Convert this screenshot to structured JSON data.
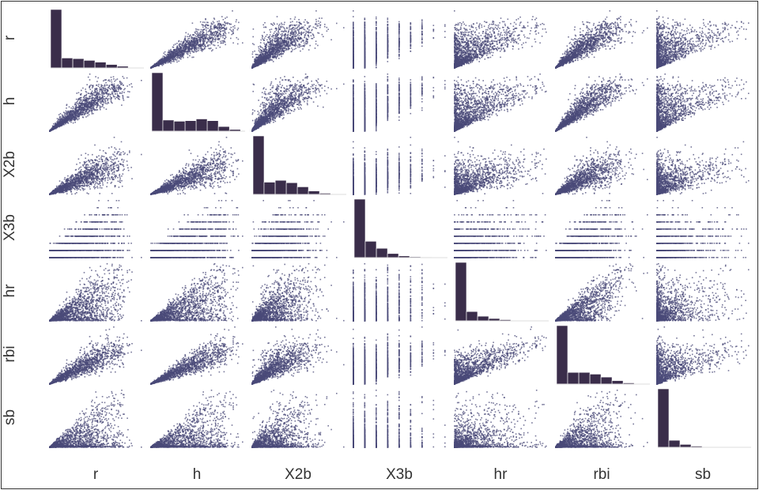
{
  "chart_data": {
    "type": "scatter_matrix",
    "variables": [
      "r",
      "h",
      "X2b",
      "X3b",
      "hr",
      "rbi",
      "sb"
    ],
    "colors": {
      "points": "#4a4a78",
      "bars": "#3a2d4a"
    },
    "diagonal": "histogram",
    "histograms": {
      "r": [
        1.0,
        0.17,
        0.16,
        0.13,
        0.1,
        0.06,
        0.03,
        0.01
      ],
      "h": [
        1.0,
        0.19,
        0.17,
        0.18,
        0.21,
        0.18,
        0.08,
        0.03
      ],
      "X2b": [
        1.0,
        0.21,
        0.24,
        0.2,
        0.13,
        0.06,
        0.02,
        0.01
      ],
      "X3b": [
        1.0,
        0.28,
        0.16,
        0.07,
        0.03,
        0.015,
        0.008,
        0.004
      ],
      "hr": [
        1.0,
        0.16,
        0.08,
        0.04,
        0.02,
        0.01,
        0.005,
        0.002
      ],
      "rbi": [
        1.0,
        0.2,
        0.2,
        0.17,
        0.12,
        0.06,
        0.02,
        0.01
      ],
      "sb": [
        1.0,
        0.12,
        0.05,
        0.02,
        0.01,
        0.005,
        0.002,
        0.001
      ]
    }
  }
}
